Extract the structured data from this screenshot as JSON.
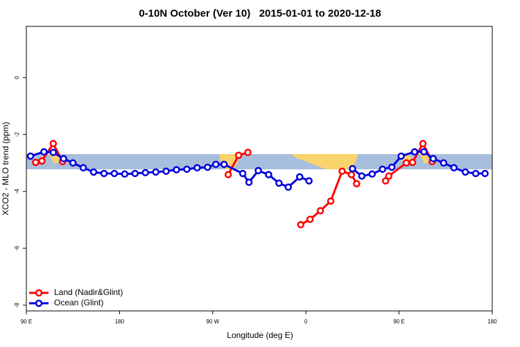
{
  "chart_data": {
    "type": "line",
    "title": "0-10N October (Ver 10)   2015-01-01 to 2020-12-18",
    "x_label": "Longitude (deg E)",
    "y_label": "XCO2 - MLO trend (ppm)",
    "xlim": [
      90,
      540
    ],
    "xticks": [
      {
        "value": 90,
        "label": "90 E"
      },
      {
        "value": 180,
        "label": "180"
      },
      {
        "value": 270,
        "label": "90 W"
      },
      {
        "value": 360,
        "label": "0"
      },
      {
        "value": 450,
        "label": "90 E"
      },
      {
        "value": 540,
        "label": "180"
      }
    ],
    "ylim": [
      -8.2,
      1.8
    ],
    "yticks": [
      0,
      -2,
      -4,
      -6,
      -8
    ],
    "legend": "bottom-left",
    "series": [
      {
        "name": "Land (Nadir&Glint)",
        "color": "#ff0000",
        "x": [
          99,
          105,
          116,
          125,
          null,
          285,
          295,
          304,
          null,
          355,
          364,
          374,
          384,
          395,
          404,
          409,
          null,
          437,
          440,
          457,
          463,
          473,
          482
        ],
        "values": [
          -2.98,
          -2.93,
          -2.32,
          -2.95,
          null,
          -3.41,
          -2.73,
          -2.63,
          null,
          -5.17,
          -4.98,
          -4.68,
          -4.34,
          -3.29,
          -3.41,
          -3.73,
          null,
          -3.63,
          -3.46,
          -3.0,
          -2.98,
          -2.32,
          -2.95
        ]
      },
      {
        "name": "Ocean (Glint)",
        "color": "#0000dd",
        "x": [
          94,
          107,
          116,
          126,
          135,
          145,
          155,
          165,
          175,
          185,
          195,
          205,
          215,
          225,
          235,
          245,
          255,
          265,
          273,
          281,
          299,
          305,
          314,
          324,
          334,
          343,
          354,
          363,
          null,
          405,
          414,
          424,
          434,
          443,
          452,
          465,
          474,
          483,
          493,
          503,
          514,
          524,
          533
        ],
        "values": [
          -2.76,
          -2.61,
          -2.63,
          -2.85,
          -3.0,
          -3.17,
          -3.32,
          -3.37,
          -3.37,
          -3.39,
          -3.37,
          -3.34,
          -3.32,
          -3.29,
          -3.24,
          -3.22,
          -3.17,
          -3.15,
          -3.05,
          -3.05,
          -3.37,
          -3.68,
          -3.27,
          -3.41,
          -3.71,
          -3.85,
          -3.49,
          -3.63,
          null,
          -3.2,
          -3.46,
          -3.39,
          -3.22,
          -3.15,
          -2.76,
          -2.61,
          -2.61,
          -2.85,
          -3.0,
          -3.17,
          -3.32,
          -3.37,
          -3.37
        ]
      }
    ]
  }
}
